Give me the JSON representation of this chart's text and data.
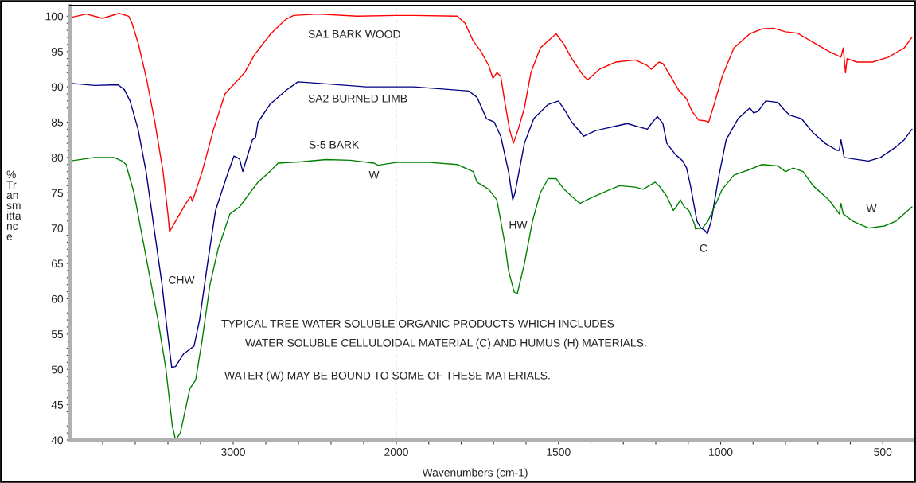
{
  "chart_data": [
    {
      "type": "line",
      "ylabel": "%\nTr\nan\nsm\nitta\nnc\ne",
      "xlim": [
        4000,
        2000
      ],
      "ylim": [
        40,
        101.5
      ],
      "xticks": [
        {
          "value": 3800,
          "label": null
        },
        {
          "value": 3600,
          "label": null
        },
        {
          "value": 3400,
          "label": null
        },
        {
          "value": 3200,
          "label": null
        },
        3000,
        {
          "value": 2800,
          "label": null
        },
        {
          "value": 2600,
          "label": null
        },
        {
          "value": 2400,
          "label": null
        },
        {
          "value": 2200,
          "label": null
        },
        2000
      ],
      "yticks": [
        40,
        {
          "value": 41,
          "label": null
        },
        {
          "value": 42,
          "label": null
        },
        {
          "value": 43,
          "label": null
        },
        {
          "value": 44,
          "label": null
        },
        45,
        {
          "value": 46,
          "label": null
        },
        {
          "value": 47,
          "label": null
        },
        {
          "value": 48,
          "label": null
        },
        {
          "value": 49,
          "label": null
        },
        50,
        {
          "value": 51,
          "label": null
        },
        {
          "value": 52,
          "label": null
        },
        {
          "value": 53,
          "label": null
        },
        {
          "value": 54,
          "label": null
        },
        55,
        {
          "value": 56,
          "label": null
        },
        {
          "value": 57,
          "label": null
        },
        {
          "value": 58,
          "label": null
        },
        {
          "value": 59,
          "label": null
        },
        60,
        {
          "value": 61,
          "label": null
        },
        {
          "value": 62,
          "label": null
        },
        {
          "value": 63,
          "label": null
        },
        {
          "value": 64,
          "label": null
        },
        65,
        {
          "value": 66,
          "label": null
        },
        {
          "value": 67,
          "label": null
        },
        {
          "value": 68,
          "label": null
        },
        {
          "value": 69,
          "label": null
        },
        70,
        {
          "value": 71,
          "label": null
        },
        {
          "value": 72,
          "label": null
        },
        {
          "value": 73,
          "label": null
        },
        {
          "value": 74,
          "label": null
        },
        75,
        {
          "value": 76,
          "label": null
        },
        {
          "value": 77,
          "label": null
        },
        {
          "value": 78,
          "label": null
        },
        {
          "value": 79,
          "label": null
        },
        80,
        {
          "value": 81,
          "label": null
        },
        {
          "value": 82,
          "label": null
        },
        {
          "value": 83,
          "label": null
        },
        {
          "value": 84,
          "label": null
        },
        85,
        {
          "value": 86,
          "label": null
        },
        {
          "value": 87,
          "label": null
        },
        {
          "value": 88,
          "label": null
        },
        {
          "value": 89,
          "label": null
        },
        90,
        {
          "value": 91,
          "label": null
        },
        {
          "value": 92,
          "label": null
        },
        {
          "value": 93,
          "label": null
        },
        {
          "value": 94,
          "label": null
        },
        95,
        {
          "value": 96,
          "label": null
        },
        {
          "value": 97,
          "label": null
        },
        {
          "value": 98,
          "label": null
        },
        {
          "value": 99,
          "label": null
        },
        100
      ],
      "grid": false,
      "legend": false,
      "marker": "none",
      "line_style": "solid",
      "series": [
        {
          "name": "SA1 BARK WOOD",
          "color": "#ff0000",
          "x": [
            4000,
            3900,
            3800,
            3700,
            3640,
            3620,
            3580,
            3530,
            3480,
            3430,
            3400,
            3390,
            3340,
            3290,
            3260,
            3250,
            3190,
            3120,
            3050,
            2970,
            2930,
            2870,
            2770,
            2680,
            2630,
            2480,
            2240,
            2000
          ],
          "values": [
            99.8,
            100.3,
            99.7,
            100.4,
            100,
            99,
            96,
            91,
            85,
            78,
            72,
            69.5,
            71.5,
            73.5,
            74.5,
            73.8,
            78,
            84,
            89,
            91,
            92,
            94.5,
            97.5,
            99.5,
            100.1,
            100.3,
            100,
            100.1
          ]
        },
        {
          "name": "SA2 BURNED LIMB",
          "color": "#000080",
          "x": [
            4000,
            3850,
            3706,
            3667,
            3632,
            3583,
            3534,
            3485,
            3436,
            3412,
            3377,
            3353,
            3304,
            3240,
            3206,
            3157,
            3108,
            3044,
            2995,
            2961,
            2941,
            2922,
            2882,
            2863,
            2848,
            2775,
            2676,
            2603,
            2480,
            2186,
            2000
          ],
          "values": [
            90.5,
            90.2,
            90.3,
            89.6,
            88,
            84,
            78,
            70,
            62,
            57,
            50.3,
            50.4,
            52.2,
            53.3,
            57,
            65,
            72.5,
            77,
            80.2,
            79.8,
            78,
            79.5,
            82.5,
            82.8,
            85,
            87.5,
            89.5,
            90.7,
            90.5,
            90,
            90
          ]
        },
        {
          "name": "S-5 BARK",
          "color": "#008000",
          "x": [
            4000,
            3850,
            3730,
            3681,
            3657,
            3608,
            3559,
            3510,
            3461,
            3412,
            3373,
            3353,
            3324,
            3265,
            3230,
            3191,
            3142,
            3093,
            3020,
            2961,
            2897,
            2848,
            2775,
            2725,
            2578,
            2431,
            2284,
            2137,
            2113,
            2000
          ],
          "values": [
            79.5,
            80,
            80,
            79.5,
            79,
            75,
            69,
            63,
            57,
            50,
            42,
            40,
            41,
            47.3,
            48.5,
            54,
            62,
            67,
            72,
            73,
            75,
            76.5,
            78,
            79.2,
            79.4,
            79.7,
            79.6,
            79.2,
            78.9,
            79.3
          ]
        }
      ],
      "annotations": [
        "CHW",
        "W",
        "TYPICAL TREE WATER SOLUBLE ORGANIC PRODUCTS WHICH INCLUDES",
        "WATER SOLUBLE CELLULOIDAL MATERIAL (C) AND HUMUS (H) MATERIALS.",
        "WATER (W) MAY BE BOUND TO SOME OF THESE MATERIALS."
      ]
    },
    {
      "type": "line",
      "xlabel": "Wavenumbers (cm-1)",
      "tick_labels": "x",
      "xlim": [
        2000,
        400
      ],
      "ylim": [
        40,
        101.5
      ],
      "xticks": [
        {
          "value": 1900,
          "label": null
        },
        {
          "value": 1800,
          "label": null
        },
        {
          "value": 1700,
          "label": null
        },
        {
          "value": 1600,
          "label": null
        },
        1500,
        {
          "value": 1400,
          "label": null
        },
        {
          "value": 1300,
          "label": null
        },
        {
          "value": 1200,
          "label": null
        },
        {
          "value": 1100,
          "label": null
        },
        1000,
        {
          "value": 900,
          "label": null
        },
        {
          "value": 800,
          "label": null
        },
        {
          "value": 700,
          "label": null
        },
        {
          "value": 600,
          "label": null
        },
        500,
        {
          "value": 400,
          "label": null
        }
      ],
      "grid": false,
      "legend": false,
      "marker": "none",
      "line_style": "solid",
      "ref_lines": [
        {
          "axis": "x",
          "value": 2000,
          "label": null,
          "color": "#c8c8c8",
          "line_style": "dotted"
        }
      ],
      "series": [
        {
          "color": "#ff0000",
          "x": [
            2000,
            1946,
            1812,
            1788,
            1763,
            1739,
            1715,
            1702,
            1690,
            1678,
            1666,
            1651,
            1639,
            1624,
            1605,
            1585,
            1556,
            1520,
            1507,
            1483,
            1459,
            1422,
            1410,
            1373,
            1324,
            1263,
            1226,
            1214,
            1190,
            1178,
            1154,
            1129,
            1105,
            1088,
            1068,
            1049,
            1037,
            1020,
            995,
            959,
            910,
            873,
            837,
            800,
            763,
            715,
            666,
            629,
            622,
            615,
            610,
            580,
            532,
            483,
            434,
            410
          ],
          "values": [
            100.1,
            100.1,
            100,
            99,
            96.5,
            95,
            93,
            91.2,
            92,
            91.5,
            88,
            84,
            82,
            84,
            87,
            92,
            95.5,
            97,
            97.5,
            96,
            94,
            91.5,
            91,
            92.5,
            93.5,
            93.8,
            93,
            92.5,
            93.5,
            93.3,
            91.5,
            89.5,
            88.3,
            86.5,
            85.3,
            85.2,
            85,
            87.5,
            91.5,
            95.5,
            97.5,
            98.2,
            98.3,
            97.8,
            97.6,
            96.3,
            95,
            94.2,
            95.5,
            92,
            94,
            93.5,
            93.5,
            94.2,
            95.5,
            97
          ]
        },
        {
          "color": "#000080",
          "x": [
            2000,
            1946,
            1776,
            1751,
            1722,
            1698,
            1678,
            1654,
            1641,
            1634,
            1605,
            1576,
            1532,
            1500,
            1478,
            1459,
            1422,
            1385,
            1337,
            1288,
            1251,
            1226,
            1210,
            1195,
            1178,
            1166,
            1141,
            1129,
            1117,
            1105,
            1093,
            1073,
            1061,
            1049,
            1041,
            1029,
            1007,
            983,
            946,
            910,
            898,
            885,
            861,
            824,
            805,
            788,
            751,
            715,
            678,
            641,
            634,
            629,
            619,
            593,
            544,
            507,
            459,
            434,
            410
          ],
          "values": [
            90,
            90,
            89.4,
            88.5,
            85.5,
            85,
            83,
            78,
            74,
            75,
            82,
            85.5,
            87.5,
            88,
            86.5,
            85,
            83,
            83.8,
            84.3,
            84.8,
            84.3,
            84,
            85,
            85.8,
            84.8,
            82,
            80.5,
            80,
            79.5,
            78.5,
            76,
            71,
            70,
            69.7,
            69.2,
            71,
            77,
            82.5,
            85.5,
            87,
            86.3,
            86.5,
            88,
            87.8,
            86.8,
            86,
            85.5,
            83.5,
            82,
            81,
            81,
            82.5,
            80,
            79.8,
            79.5,
            80,
            81.5,
            82.5,
            84
          ]
        },
        {
          "color": "#008000",
          "x": [
            2000,
            1898,
            1812,
            1763,
            1751,
            1715,
            1690,
            1666,
            1654,
            1637,
            1627,
            1605,
            1580,
            1556,
            1532,
            1507,
            1483,
            1459,
            1434,
            1398,
            1349,
            1312,
            1263,
            1239,
            1202,
            1190,
            1166,
            1146,
            1137,
            1124,
            1112,
            1098,
            1080,
            1078,
            1056,
            1039,
            1024,
            995,
            959,
            910,
            873,
            824,
            800,
            776,
            746,
            715,
            666,
            634,
            629,
            622,
            593,
            544,
            495,
            459,
            410
          ],
          "values": [
            79.3,
            79.3,
            79,
            78,
            76.5,
            75.5,
            74,
            68,
            64,
            61,
            60.7,
            65,
            71,
            75,
            77,
            77,
            75.5,
            74.5,
            73.5,
            74.3,
            75.3,
            76,
            75.8,
            75.5,
            76.5,
            76,
            74.5,
            72.5,
            73,
            74,
            73,
            72.5,
            70.5,
            69.9,
            70,
            71,
            72.5,
            75.5,
            77.5,
            78.3,
            79,
            78.8,
            78,
            78.5,
            78,
            76,
            74,
            72,
            73.5,
            72,
            71,
            70,
            70.3,
            71,
            73
          ]
        }
      ],
      "annotations": [
        "HW",
        "C",
        "W"
      ]
    }
  ]
}
